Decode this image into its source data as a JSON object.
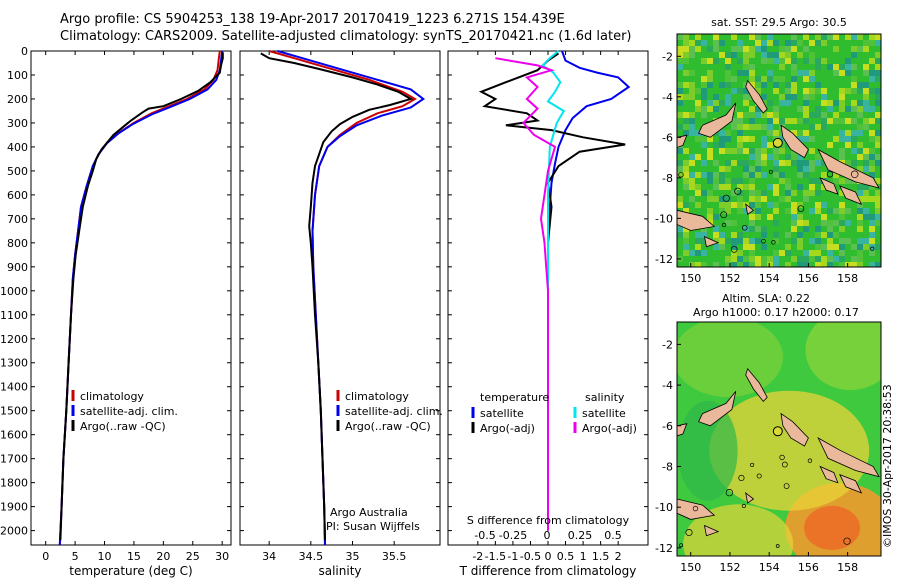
{
  "header": {
    "line1": "Argo profile: CS 5904253_138 19-Apr-2017 20170419_1223 6.271S 154.439E",
    "line2": "Climatology: CARS2009. Satellite-adjusted climatology: synTS_20170421.nc (1.6d later)"
  },
  "stamp": "©IMOS 30-Apr-2017 20:38:53",
  "chart_data": [
    {
      "type": "line",
      "id": "temperature",
      "xlabel": "temperature (deg C)",
      "xlim": [
        -2.5,
        31.5
      ],
      "xticks": [
        0,
        5,
        10,
        15,
        20,
        25,
        30
      ],
      "ylim": [
        2060,
        0
      ],
      "yticks": [
        0,
        100,
        200,
        300,
        400,
        500,
        600,
        700,
        800,
        900,
        1000,
        1100,
        1200,
        1300,
        1400,
        1500,
        1600,
        1700,
        1800,
        1900,
        2000
      ],
      "legend": [
        "climatology",
        "satellite-adj. clim.",
        "Argo(..raw -QC)"
      ],
      "colors": {
        "climatology": "#cc0000",
        "satellite": "#0000ee",
        "argo": "#000000"
      },
      "series": [
        {
          "name": "climatology",
          "points": [
            [
              29.6,
              0
            ],
            [
              29.4,
              40
            ],
            [
              29.2,
              80
            ],
            [
              28.5,
              120
            ],
            [
              27.0,
              160
            ],
            [
              24.0,
              200
            ],
            [
              21.0,
              230
            ],
            [
              18.0,
              260
            ],
            [
              15.0,
              300
            ],
            [
              12.5,
              340
            ],
            [
              10.5,
              380
            ],
            [
              9.0,
              430
            ],
            [
              8.0,
              480
            ],
            [
              7.0,
              560
            ],
            [
              6.0,
              650
            ],
            [
              5.5,
              750
            ],
            [
              5.0,
              850
            ],
            [
              4.6,
              950
            ],
            [
              4.3,
              1100
            ],
            [
              3.9,
              1300
            ],
            [
              3.5,
              1500
            ],
            [
              3.0,
              1700
            ],
            [
              2.7,
              1900
            ],
            [
              2.4,
              2060
            ]
          ]
        },
        {
          "name": "satellite-adj. clim.",
          "points": [
            [
              30.0,
              0
            ],
            [
              29.8,
              40
            ],
            [
              29.6,
              80
            ],
            [
              29.0,
              120
            ],
            [
              27.5,
              160
            ],
            [
              24.5,
              200
            ],
            [
              21.0,
              235
            ],
            [
              18.0,
              265
            ],
            [
              14.8,
              305
            ],
            [
              12.3,
              345
            ],
            [
              10.4,
              385
            ],
            [
              9.0,
              430
            ],
            [
              8.0,
              480
            ],
            [
              7.0,
              560
            ],
            [
              6.0,
              650
            ],
            [
              5.5,
              750
            ],
            [
              5.0,
              850
            ],
            [
              4.6,
              950
            ],
            [
              4.3,
              1100
            ],
            [
              3.9,
              1300
            ],
            [
              3.5,
              1500
            ],
            [
              3.0,
              1700
            ],
            [
              2.7,
              1900
            ],
            [
              2.4,
              2060
            ]
          ]
        },
        {
          "name": "Argo(..raw -QC)",
          "points": [
            [
              30.1,
              5
            ],
            [
              30.1,
              30
            ],
            [
              29.8,
              60
            ],
            [
              29.6,
              90
            ],
            [
              28.0,
              130
            ],
            [
              26.0,
              165
            ],
            [
              23.0,
              200
            ],
            [
              20.0,
              230
            ],
            [
              17.5,
              240
            ],
            [
              16.5,
              255
            ],
            [
              14.5,
              290
            ],
            [
              13.0,
              320
            ],
            [
              11.5,
              350
            ],
            [
              10.5,
              380
            ],
            [
              9.5,
              410
            ],
            [
              8.6,
              450
            ],
            [
              8.0,
              500
            ],
            [
              7.2,
              560
            ],
            [
              6.3,
              650
            ],
            [
              5.7,
              750
            ],
            [
              5.1,
              850
            ],
            [
              4.7,
              950
            ],
            [
              4.3,
              1100
            ],
            [
              3.9,
              1300
            ],
            [
              3.5,
              1500
            ],
            [
              3.0,
              1700
            ],
            [
              2.7,
              1900
            ],
            [
              2.5,
              2040
            ]
          ]
        }
      ]
    },
    {
      "type": "line",
      "id": "salinity",
      "xlabel": "salinity",
      "xlim": [
        33.65,
        36.05
      ],
      "xticks": [
        34,
        34.5,
        35,
        35.5
      ],
      "ylim": [
        2060,
        0
      ],
      "legend": [
        "climatology",
        "satellite-adj. clim.",
        "Argo(..raw -QC)"
      ],
      "annotation": [
        "Argo Australia",
        "PI: Susan Wijffels"
      ],
      "series": [
        {
          "name": "climatology",
          "points": [
            [
              34.0,
              0
            ],
            [
              34.3,
              30
            ],
            [
              34.7,
              70
            ],
            [
              35.2,
              120
            ],
            [
              35.6,
              170
            ],
            [
              35.75,
              200
            ],
            [
              35.6,
              230
            ],
            [
              35.3,
              260
            ],
            [
              35.05,
              300
            ],
            [
              34.85,
              350
            ],
            [
              34.7,
              400
            ],
            [
              34.6,
              480
            ],
            [
              34.55,
              600
            ],
            [
              34.52,
              750
            ],
            [
              34.53,
              900
            ],
            [
              34.56,
              1100
            ],
            [
              34.59,
              1300
            ],
            [
              34.62,
              1500
            ],
            [
              34.64,
              1700
            ],
            [
              34.66,
              1900
            ],
            [
              34.67,
              2060
            ]
          ]
        },
        {
          "name": "satellite-adj. clim.",
          "points": [
            [
              34.1,
              0
            ],
            [
              34.4,
              30
            ],
            [
              34.8,
              70
            ],
            [
              35.3,
              120
            ],
            [
              35.7,
              160
            ],
            [
              35.85,
              200
            ],
            [
              35.7,
              235
            ],
            [
              35.35,
              270
            ],
            [
              35.05,
              310
            ],
            [
              34.85,
              355
            ],
            [
              34.7,
              400
            ],
            [
              34.6,
              480
            ],
            [
              34.55,
              600
            ],
            [
              34.52,
              750
            ],
            [
              34.53,
              900
            ],
            [
              34.56,
              1100
            ],
            [
              34.59,
              1300
            ],
            [
              34.62,
              1500
            ],
            [
              34.64,
              1700
            ],
            [
              34.66,
              1900
            ],
            [
              34.67,
              2060
            ]
          ]
        },
        {
          "name": "Argo(..raw -QC)",
          "points": [
            [
              33.9,
              10
            ],
            [
              34.0,
              30
            ],
            [
              34.3,
              50
            ],
            [
              34.6,
              75
            ],
            [
              35.0,
              110
            ],
            [
              35.3,
              140
            ],
            [
              35.55,
              170
            ],
            [
              35.7,
              200
            ],
            [
              35.45,
              225
            ],
            [
              35.2,
              245
            ],
            [
              35.0,
              275
            ],
            [
              34.85,
              305
            ],
            [
              34.75,
              335
            ],
            [
              34.65,
              380
            ],
            [
              34.6,
              430
            ],
            [
              34.55,
              480
            ],
            [
              34.52,
              550
            ],
            [
              34.5,
              650
            ],
            [
              34.48,
              730
            ],
            [
              34.5,
              800
            ],
            [
              34.52,
              900
            ],
            [
              34.55,
              1100
            ],
            [
              34.59,
              1300
            ],
            [
              34.62,
              1500
            ],
            [
              34.64,
              1700
            ],
            [
              34.66,
              1900
            ],
            [
              34.67,
              2040
            ]
          ]
        }
      ]
    },
    {
      "type": "line",
      "id": "difference",
      "xlabel_bottom": "T difference from climatology",
      "xlabel_top": "S difference from climatology",
      "xlim_T": [
        -2.85,
        2.85
      ],
      "xticks_T": [
        -2,
        -1.5,
        -1,
        -0.5,
        0,
        0.5,
        1,
        1.5,
        2
      ],
      "xticks_S": [
        "-0.5",
        "-0.25",
        "0",
        "0.25",
        "0.5"
      ],
      "legend_headers": [
        "temperature",
        "salinity"
      ],
      "legend": [
        "satellite",
        "Argo(-adj)",
        "satellite",
        "Argo(-adj)"
      ],
      "series": [
        {
          "name": "T satellite",
          "points": [
            [
              0.4,
              0
            ],
            [
              0.5,
              40
            ],
            [
              0.9,
              70
            ],
            [
              1.4,
              90
            ],
            [
              2.0,
              110
            ],
            [
              2.3,
              150
            ],
            [
              1.8,
              200
            ],
            [
              1.1,
              230
            ],
            [
              0.7,
              280
            ],
            [
              0.5,
              330
            ],
            [
              0.3,
              400
            ],
            [
              0.2,
              470
            ],
            [
              0.1,
              550
            ],
            [
              0.05,
              650
            ],
            [
              0.0,
              800
            ],
            [
              0.0,
              1000
            ],
            [
              0.0,
              1500
            ],
            [
              0.0,
              2000
            ]
          ]
        },
        {
          "name": "T Argo(-adj)",
          "points": [
            [
              0.3,
              10
            ],
            [
              0.0,
              40
            ],
            [
              -0.3,
              80
            ],
            [
              -1.2,
              130
            ],
            [
              -1.9,
              170
            ],
            [
              -1.5,
              200
            ],
            [
              -1.8,
              230
            ],
            [
              -0.6,
              260
            ],
            [
              -0.3,
              290
            ],
            [
              -1.2,
              310
            ],
            [
              0.1,
              330
            ],
            [
              1.0,
              360
            ],
            [
              2.2,
              390
            ],
            [
              0.9,
              420
            ],
            [
              0.3,
              480
            ],
            [
              0.0,
              550
            ],
            [
              0.1,
              650
            ],
            [
              0.0,
              800
            ],
            [
              0.0,
              1000
            ],
            [
              0.0,
              1500
            ],
            [
              0.0,
              2000
            ]
          ]
        },
        {
          "name": "S satellite",
          "points": [
            [
              0.3,
              0
            ],
            [
              0.05,
              30
            ],
            [
              -0.15,
              60
            ],
            [
              0.15,
              90
            ],
            [
              0.35,
              130
            ],
            [
              0.2,
              170
            ],
            [
              0.0,
              210
            ],
            [
              0.45,
              250
            ],
            [
              0.25,
              300
            ],
            [
              0.05,
              400
            ],
            [
              0.0,
              600
            ],
            [
              0.0,
              1000
            ],
            [
              0.0,
              2000
            ]
          ]
        },
        {
          "name": "S Argo(-adj)",
          "points": [
            [
              -1.5,
              30
            ],
            [
              -0.3,
              60
            ],
            [
              0.1,
              80
            ],
            [
              -0.6,
              110
            ],
            [
              -0.3,
              150
            ],
            [
              -0.6,
              200
            ],
            [
              -0.3,
              240
            ],
            [
              -0.7,
              300
            ],
            [
              -0.4,
              350
            ],
            [
              0.2,
              400
            ],
            [
              0.0,
              500
            ],
            [
              -0.1,
              600
            ],
            [
              -0.2,
              700
            ],
            [
              -0.1,
              800
            ],
            [
              -0.05,
              900
            ],
            [
              0.0,
              1000
            ],
            [
              0.0,
              2000
            ]
          ]
        }
      ]
    },
    {
      "type": "heatmap",
      "id": "sst_map",
      "title": "sat. SST: 29.5 Argo: 30.5",
      "xlim": [
        149.3,
        159.7
      ],
      "ylim": [
        -12.4,
        -0.9
      ],
      "xticks": [
        150,
        152,
        154,
        156,
        158
      ],
      "yticks": [
        -2,
        -4,
        -6,
        -8,
        -10,
        -12
      ],
      "argo_position": {
        "lon": 154.439,
        "lat": -6.271
      },
      "colors": {
        "land": "#eab89a",
        "base": "#2fbd2f"
      }
    },
    {
      "type": "heatmap",
      "id": "sla_map",
      "title_line1": "Altim. SLA: 0.22",
      "title_line2": "Argo h1000: 0.17 h2000: 0.17",
      "xlim": [
        149.3,
        159.7
      ],
      "ylim": [
        -12.4,
        -0.9
      ],
      "xticks": [
        150,
        152,
        154,
        156,
        158
      ],
      "yticks": [
        -2,
        -4,
        -6,
        -8,
        -10,
        -12
      ],
      "argo_position": {
        "lon": 154.439,
        "lat": -6.271
      },
      "colors": {
        "land": "#eab89a",
        "base": "#3ec93e"
      }
    }
  ]
}
